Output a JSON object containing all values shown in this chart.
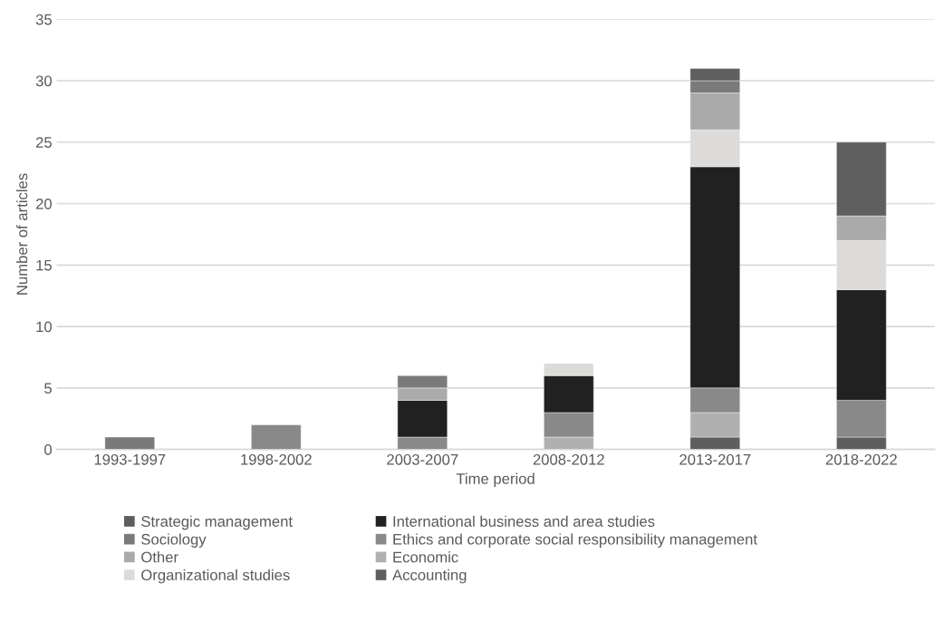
{
  "chart_data": {
    "type": "bar",
    "stacked": true,
    "xlabel": "Time period",
    "ylabel": "Number of articles",
    "categories": [
      "1993-1997",
      "1998-2002",
      "2003-2007",
      "2008-2012",
      "2013-2017",
      "2018-2022"
    ],
    "series": [
      {
        "name": "Strategic management",
        "color": "#5e5e5e",
        "values": [
          0,
          0,
          0,
          0,
          1,
          1
        ]
      },
      {
        "name": "Economic",
        "color": "#b0b0b0",
        "values": [
          0,
          0,
          0,
          1,
          2,
          0
        ]
      },
      {
        "name": "Ethics and corporate social responsibility management",
        "color": "#898989",
        "values": [
          0,
          2,
          1,
          2,
          2,
          3
        ]
      },
      {
        "name": "International business and area studies",
        "color": "#212121",
        "values": [
          0,
          0,
          3,
          3,
          18,
          9
        ]
      },
      {
        "name": "Organizational studies",
        "color": "#dcdbd9",
        "values": [
          0,
          0,
          0,
          1,
          3,
          4
        ]
      },
      {
        "name": "Other",
        "color": "#aaaaaa",
        "values": [
          0,
          0,
          1,
          0,
          3,
          2
        ]
      },
      {
        "name": "Sociology",
        "color": "#7a7a7a",
        "values": [
          1,
          0,
          1,
          0,
          1,
          0
        ]
      },
      {
        "name": "Accounting",
        "color": "#5f5f5f",
        "values": [
          0,
          0,
          0,
          0,
          1,
          6
        ]
      }
    ],
    "ylim": [
      0,
      35
    ],
    "yticks": [
      0,
      5,
      10,
      15,
      20,
      25,
      30,
      35
    ],
    "grid": "y",
    "legend": "bottom"
  }
}
